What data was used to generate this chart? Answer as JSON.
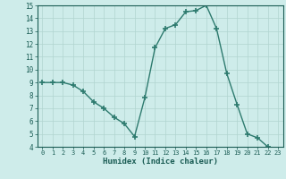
{
  "x": [
    0,
    1,
    2,
    3,
    4,
    5,
    6,
    7,
    8,
    9,
    10,
    11,
    12,
    13,
    14,
    15,
    16,
    17,
    18,
    19,
    20,
    21,
    22,
    23
  ],
  "y": [
    9.0,
    9.0,
    9.0,
    8.8,
    8.3,
    7.5,
    7.0,
    6.3,
    5.8,
    4.8,
    7.8,
    11.7,
    13.2,
    13.5,
    14.5,
    14.6,
    15.0,
    13.2,
    9.7,
    7.3,
    5.0,
    4.7,
    4.0,
    3.8
  ],
  "xlabel": "Humidex (Indice chaleur)",
  "ylim": [
    4,
    15
  ],
  "xlim": [
    -0.5,
    23.5
  ],
  "yticks": [
    4,
    5,
    6,
    7,
    8,
    9,
    10,
    11,
    12,
    13,
    14,
    15
  ],
  "xticks": [
    0,
    1,
    2,
    3,
    4,
    5,
    6,
    7,
    8,
    9,
    10,
    11,
    12,
    13,
    14,
    15,
    16,
    17,
    18,
    19,
    20,
    21,
    22,
    23
  ],
  "line_color": "#2d7a6e",
  "marker_color": "#2d7a6e",
  "bg_color": "#ceecea",
  "grid_color": "#b0d5d0",
  "text_color": "#1a5c54",
  "font_family": "monospace"
}
